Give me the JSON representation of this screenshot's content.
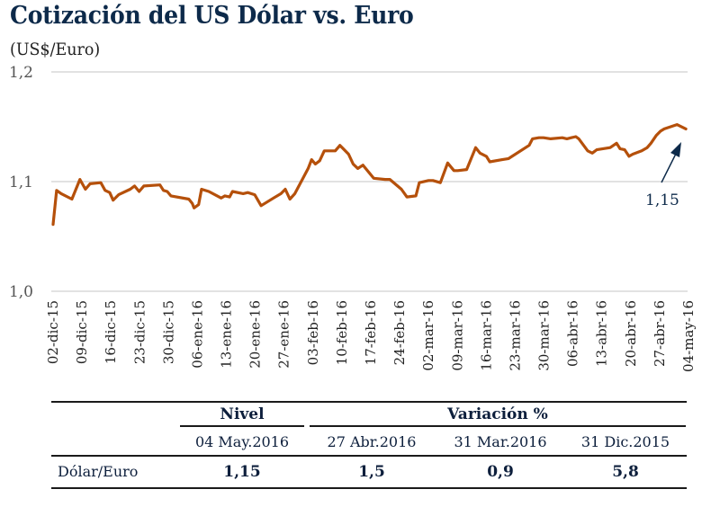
{
  "title": "Cotización del US Dólar vs. Euro",
  "subtitle": "(US$/Euro)",
  "chart_data": {
    "type": "line",
    "title": "Cotización del US Dólar vs. Euro",
    "ylabel": "(US$/Euro)",
    "xlabel": "",
    "ylim": [
      1.0,
      1.2
    ],
    "yticks": [
      {
        "value": 1.0,
        "label": "1,0"
      },
      {
        "value": 1.1,
        "label": "1,1"
      },
      {
        "value": 1.2,
        "label": "1,2"
      }
    ],
    "grid": true,
    "line_color": "#b5500b",
    "x_tick_labels": [
      "02-dic-15",
      "09-dic-15",
      "16-dic-15",
      "23-dic-15",
      "30-dic-15",
      "06-ene-16",
      "13-ene-16",
      "20-ene-16",
      "27-ene-16",
      "03-feb-16",
      "10-feb-16",
      "17-feb-16",
      "24-feb-16",
      "02-mar-16",
      "09-mar-16",
      "16-mar-16",
      "23-mar-16",
      "30-mar-16",
      "06-abr-16",
      "13-abr-16",
      "20-abr-16",
      "27-abr-16",
      "04-may-16"
    ],
    "series": [
      {
        "name": "US$/Euro",
        "x_week": [
          0.0,
          0.12,
          0.28,
          0.65,
          0.93,
          1.12,
          1.28,
          1.65,
          1.8,
          1.96,
          2.08,
          2.27,
          2.67,
          2.82,
          2.98,
          3.14,
          3.7,
          3.82,
          3.95,
          4.08,
          4.7,
          4.82,
          4.88,
          5.04,
          5.14,
          5.39,
          5.82,
          5.95,
          6.11,
          6.21,
          6.58,
          6.74,
          6.98,
          7.2,
          7.63,
          7.89,
          8.04,
          8.2,
          8.37,
          8.83,
          8.95,
          9.08,
          9.23,
          9.39,
          9.77,
          9.93,
          10.23,
          10.39,
          10.55,
          10.73,
          11.1,
          11.5,
          11.66,
          12.06,
          12.25,
          12.56,
          12.68,
          13.0,
          13.15,
          13.41,
          13.66,
          13.88,
          14.01,
          14.32,
          14.63,
          14.78,
          15.0,
          15.12,
          15.55,
          15.77,
          16.48,
          16.6,
          16.82,
          16.98,
          17.23,
          17.63,
          17.79,
          17.94,
          18.1,
          18.2,
          18.51,
          18.67,
          18.82,
          19.29,
          19.51,
          19.63,
          19.79,
          19.94,
          20.07,
          20.38,
          20.57,
          20.7,
          20.88,
          21.03,
          21.16,
          21.6,
          21.91
        ],
        "values": [
          1.061,
          1.092,
          1.089,
          1.084,
          1.102,
          1.093,
          1.098,
          1.099,
          1.092,
          1.09,
          1.083,
          1.088,
          1.093,
          1.096,
          1.091,
          1.096,
          1.097,
          1.092,
          1.091,
          1.087,
          1.084,
          1.08,
          1.076,
          1.079,
          1.093,
          1.091,
          1.085,
          1.087,
          1.086,
          1.091,
          1.089,
          1.09,
          1.088,
          1.078,
          1.085,
          1.089,
          1.093,
          1.084,
          1.089,
          1.112,
          1.12,
          1.116,
          1.119,
          1.128,
          1.128,
          1.133,
          1.125,
          1.116,
          1.112,
          1.115,
          1.103,
          1.102,
          1.102,
          1.093,
          1.086,
          1.087,
          1.099,
          1.101,
          1.101,
          1.099,
          1.117,
          1.11,
          1.11,
          1.111,
          1.131,
          1.126,
          1.123,
          1.118,
          1.12,
          1.121,
          1.133,
          1.139,
          1.14,
          1.14,
          1.139,
          1.14,
          1.139,
          1.14,
          1.141,
          1.139,
          1.128,
          1.126,
          1.129,
          1.131,
          1.135,
          1.13,
          1.129,
          1.123,
          1.125,
          1.128,
          1.131,
          1.135,
          1.142,
          1.146,
          1.148,
          1.152,
          1.148
        ]
      }
    ],
    "annotations": [
      {
        "text": "1,15",
        "points_to": "last value (04-may-16)",
        "arrow": true
      }
    ]
  },
  "table": {
    "group_headers": {
      "nivel": "Nivel",
      "variacion": "Variación %"
    },
    "columns": [
      "04 May.2016",
      "27 Abr.2016",
      "31 Mar.2016",
      "31 Dic.2015"
    ],
    "rows": [
      {
        "label": "Dólar/Euro",
        "values": [
          "1,15",
          "1,5",
          "0,9",
          "5,8"
        ]
      }
    ]
  }
}
